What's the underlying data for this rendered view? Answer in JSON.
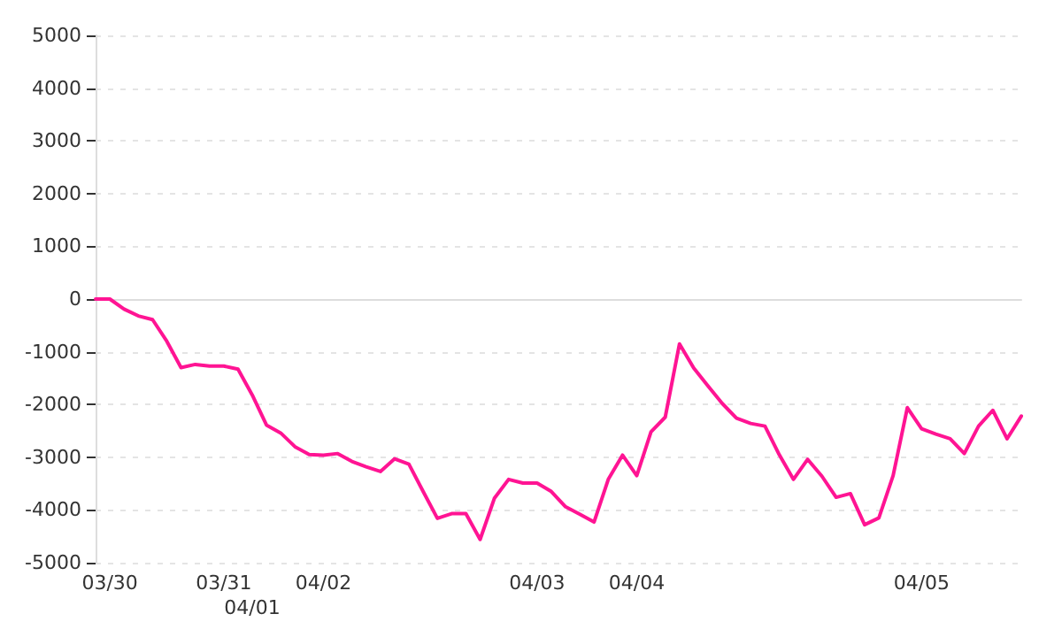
{
  "chart_data": {
    "type": "line",
    "categories": [
      null,
      "03/30",
      null,
      null,
      null,
      null,
      null,
      null,
      null,
      "03/31",
      null,
      "04/01",
      null,
      null,
      null,
      null,
      "04/02",
      null,
      null,
      null,
      null,
      null,
      null,
      null,
      null,
      null,
      null,
      null,
      null,
      null,
      null,
      "04/03",
      null,
      null,
      null,
      null,
      null,
      null,
      "04/04",
      null,
      null,
      null,
      null,
      null,
      null,
      null,
      null,
      null,
      null,
      null,
      null,
      null,
      null,
      null,
      null,
      null,
      null,
      null,
      "04/05",
      null,
      null,
      null,
      null,
      null,
      null,
      null
    ],
    "series": [
      {
        "color": "#ff1493",
        "values": [
          0,
          0,
          -190,
          -320,
          -390,
          -800,
          -1300,
          -1240,
          -1270,
          -1270,
          -1330,
          -1820,
          -2390,
          -2540,
          -2800,
          -2950,
          -2960,
          -2930,
          -3080,
          -3180,
          -3270,
          -3030,
          -3130,
          -3650,
          -4160,
          -4070,
          -4070,
          -4560,
          -3780,
          -3420,
          -3490,
          -3490,
          -3650,
          -3940,
          -4080,
          -4230,
          -3420,
          -2960,
          -3350,
          -2520,
          -2240,
          -850,
          -1310,
          -1650,
          -1980,
          -2260,
          -2360,
          -2410,
          -2950,
          -3420,
          -3040,
          -3360,
          -3760,
          -3690,
          -4280,
          -4150,
          -3350,
          -2060,
          -2460,
          -2560,
          -2650,
          -2930,
          -2410,
          -2110,
          -2650,
          -2220
        ]
      }
    ],
    "ylim": [
      -5000,
      5000
    ],
    "yticks": [
      -5000,
      -4000,
      -3000,
      -2000,
      -1000,
      0,
      1000,
      2000,
      3000,
      4000,
      5000
    ],
    "grid": "y",
    "marker": "none",
    "line_style": "solid"
  }
}
